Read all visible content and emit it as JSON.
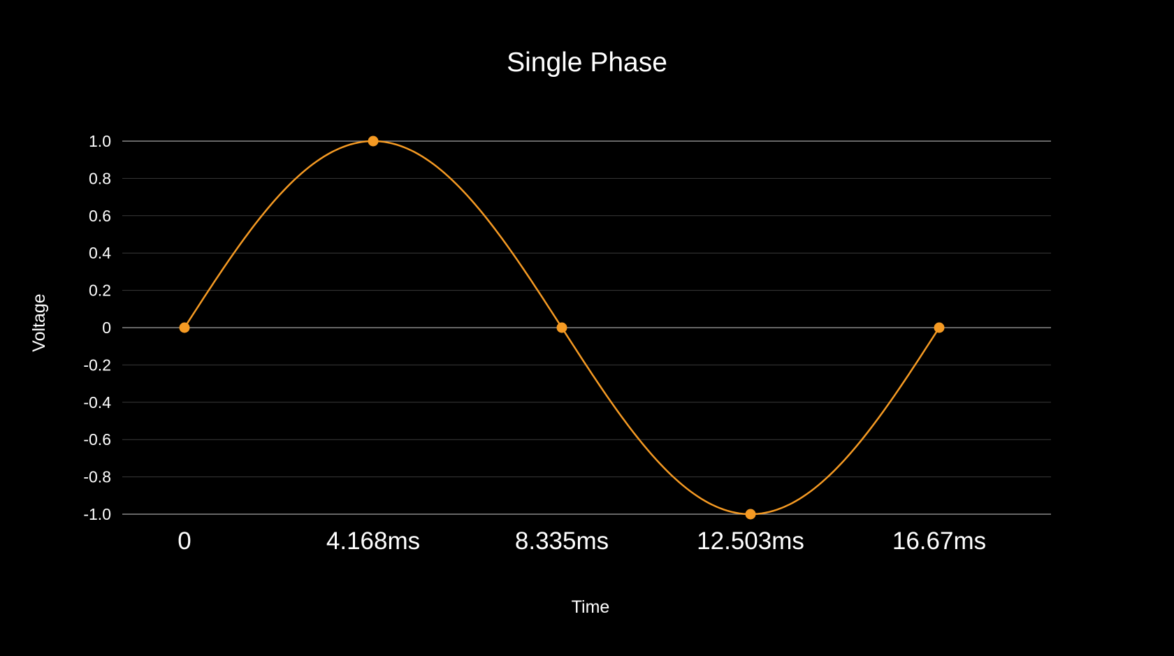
{
  "chart_data": {
    "type": "line",
    "title": "Single Phase",
    "xlabel": "Time",
    "ylabel": "Voltage",
    "x_tick_labels": [
      "0",
      "4.168ms",
      "8.335ms",
      "12.503ms",
      "16.67ms"
    ],
    "y_tick_labels": [
      "1.0",
      "0.8",
      "0.6",
      "0.4",
      "0.2",
      "0",
      "-0.2",
      "-0.4",
      "-0.6",
      "-0.8",
      "-1.0"
    ],
    "ylim": [
      -1.0,
      1.0
    ],
    "xlim": [
      0,
      16.67
    ],
    "x_unit": "ms",
    "grid": true,
    "legend": "none",
    "series": [
      {
        "curve": "sine",
        "x": [
          0,
          4.168,
          8.335,
          12.503,
          16.67
        ],
        "values": [
          0,
          1.0,
          0,
          -1.0,
          0
        ]
      }
    ],
    "colors": {
      "background": "#000000",
      "line": "#f59a23",
      "marker": "#f59a23",
      "grid": "#3a3a3a",
      "zero_line": "#8a8a8a",
      "text": "#ffffff"
    }
  }
}
